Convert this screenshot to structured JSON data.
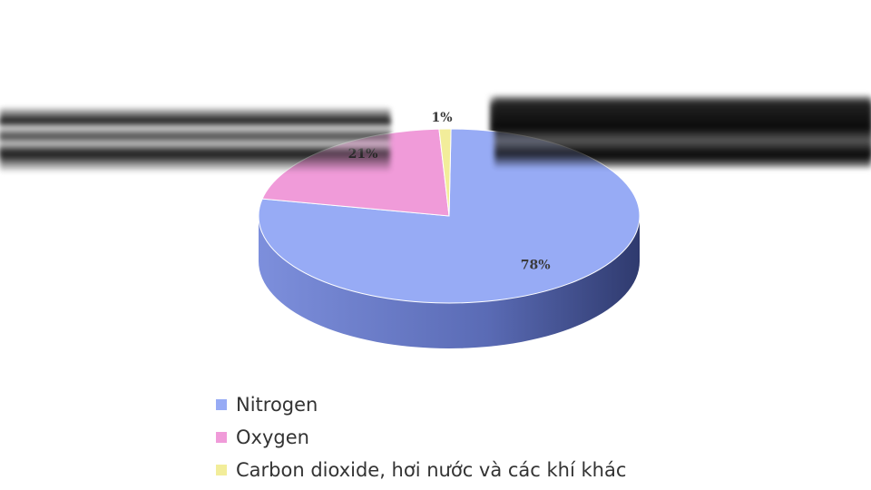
{
  "chart_data": {
    "type": "pie",
    "style": "3d",
    "title": "",
    "legend_position": "bottom",
    "slices": [
      {
        "name": "Nitrogen",
        "value": 78,
        "label": "78%",
        "color": "#97abf5",
        "side_color": "#6f80c8"
      },
      {
        "name": "Oxygen",
        "value": 21,
        "label": "21%",
        "color": "#f09bd9",
        "side_color": "#c872b0"
      },
      {
        "name": "Carbon dioxide, hơi nước và các khí khác",
        "value": 1,
        "label": "1%",
        "color": "#f2ed9a",
        "side_color": "#c9c36f"
      }
    ]
  }
}
